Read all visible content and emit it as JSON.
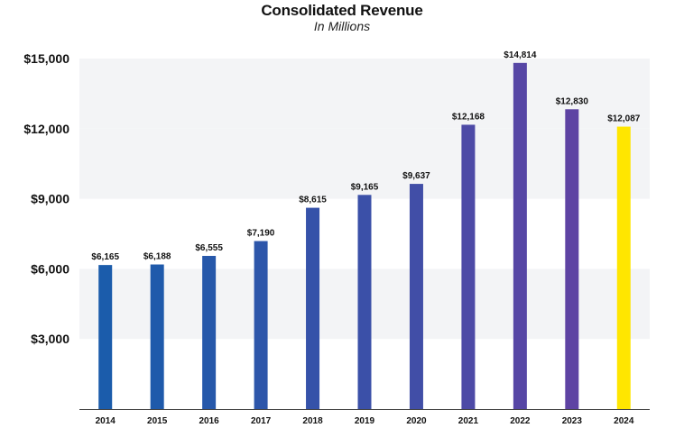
{
  "chart_data": {
    "type": "bar",
    "title": "Consolidated Revenue",
    "subtitle": "In Millions",
    "xlabel": "",
    "ylabel": "",
    "ylim": [
      0,
      15000
    ],
    "yticks": [
      3000,
      6000,
      9000,
      12000,
      15000
    ],
    "ytick_labels": [
      "$3,000",
      "$6,000",
      "$9,000",
      "$12,000",
      "$15,000"
    ],
    "categories": [
      "2014",
      "2015",
      "2016",
      "2017",
      "2018",
      "2019",
      "2020",
      "2021",
      "2022",
      "2023",
      "2024"
    ],
    "values": [
      6165,
      6188,
      6555,
      7190,
      8615,
      9165,
      9637,
      12168,
      14814,
      12830,
      12087
    ],
    "value_labels": [
      "$6,165",
      "$6,188",
      "$6,555",
      "$7,190",
      "$8,615",
      "$9,165",
      "$9,637",
      "$12,168",
      "$14,814",
      "$12,830",
      "$12,087"
    ],
    "bar_colors": [
      "#1b5cab",
      "#1f5aab",
      "#2658aa",
      "#2d56aa",
      "#3552a9",
      "#3b50a8",
      "#414ea7",
      "#4d4aa6",
      "#5646a5",
      "#5e43a3",
      "#ffe600"
    ],
    "background_bands": true,
    "band_color": "#f3f4f6",
    "axis_color": "#444444"
  }
}
